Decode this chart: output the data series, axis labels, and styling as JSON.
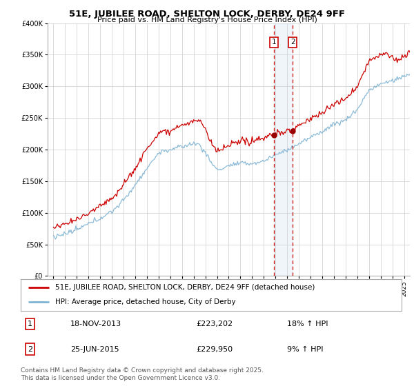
{
  "title": "51E, JUBILEE ROAD, SHELTON LOCK, DERBY, DE24 9FF",
  "subtitle": "Price paid vs. HM Land Registry's House Price Index (HPI)",
  "legend_line1": "51E, JUBILEE ROAD, SHELTON LOCK, DERBY, DE24 9FF (detached house)",
  "legend_line2": "HPI: Average price, detached house, City of Derby",
  "footer": "Contains HM Land Registry data © Crown copyright and database right 2025.\nThis data is licensed under the Open Government Licence v3.0.",
  "transaction1_label": "1",
  "transaction1_date": "18-NOV-2013",
  "transaction1_price": "£223,202",
  "transaction1_hpi": "18% ↑ HPI",
  "transaction2_label": "2",
  "transaction2_date": "25-JUN-2015",
  "transaction2_price": "£229,950",
  "transaction2_hpi": "9% ↑ HPI",
  "sale1_x": 2013.88,
  "sale1_y": 223202,
  "sale2_x": 2015.48,
  "sale2_y": 229950,
  "ylim": [
    0,
    400000
  ],
  "xlim_start": 1994.5,
  "xlim_end": 2025.5,
  "background_color": "#ffffff",
  "plot_bg_color": "#ffffff",
  "grid_color": "#cccccc",
  "red_line_color": "#cc0000",
  "blue_line_color": "#7fb3d3",
  "shade_color": "#c5d9ec",
  "vline_color": "#cc0000",
  "ytick_labels": [
    "£0",
    "£50K",
    "£100K",
    "£150K",
    "£200K",
    "£250K",
    "£300K",
    "£350K",
    "£400K"
  ],
  "ytick_values": [
    0,
    50000,
    100000,
    150000,
    200000,
    250000,
    300000,
    350000,
    400000
  ]
}
